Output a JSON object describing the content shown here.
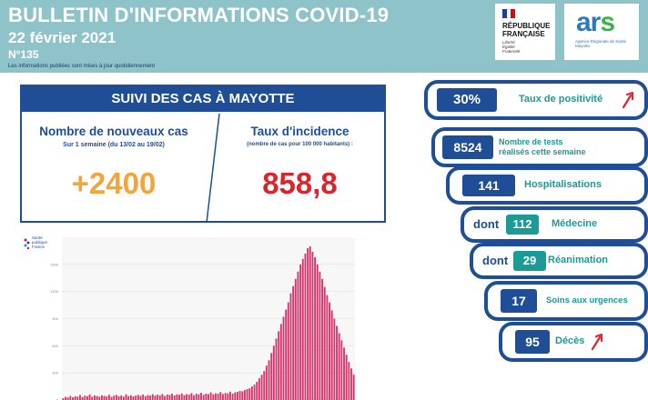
{
  "header": {
    "title": "BULLETIN D'INFORMATIONS COVID-19",
    "date": "22 février 2021",
    "number": "N°135",
    "note": "Les informations publiées sont mises à jour quotidiennement"
  },
  "logos": {
    "republique": "RÉPUBLIQUE\nFRANÇAISE",
    "motto": "Liberté\nÉgalité\nFraternité",
    "ars_word": "ar",
    "ars_s": "s",
    "ars_sub": "Agence Régionale de Santé\nMayotte",
    "spf": "Santé\npublique\nFrance"
  },
  "suivi": {
    "heading": "SUIVI DES CAS À MAYOTTE",
    "cases_label": "Nombre de nouveaux cas",
    "cases_period": "Sur 1 semaine (du 13/02 au 19/02)",
    "cases_value": "+2400",
    "incidence_label": "Taux d'incidence",
    "incidence_note": "(nombre de cas pour 100 000 habitants) :",
    "incidence_value": "858,8"
  },
  "stats": [
    {
      "value": "30%",
      "label": "Taux de positivité",
      "trend": "up"
    },
    {
      "value": "8524",
      "label": "Nombre de tests réalisés cette semaine"
    },
    {
      "value": "141",
      "label": "Hospitalisations"
    },
    {
      "prefix": "dont",
      "value": "112",
      "label": "Médecine"
    },
    {
      "prefix": "dont",
      "value": "29",
      "label": "Réanimation"
    },
    {
      "value": "17",
      "label": "Soins aux urgences"
    },
    {
      "value": "95",
      "label": "Décès",
      "trend": "up"
    }
  ],
  "colors": {
    "header_bg": "#8ec3c9",
    "navy": "#1f4d96",
    "teal": "#1b9a96",
    "orange": "#f3a53b",
    "red": "#d9262e",
    "bar": "#d8336b"
  },
  "chart_data": {
    "type": "bar",
    "title": "",
    "xlabel": "",
    "ylabel": "",
    "ylim": [
      0,
      1800
    ],
    "yticks": [
      0,
      300,
      600,
      900,
      1200,
      1500
    ],
    "series": [
      {
        "values": [
          20,
          35,
          28,
          45,
          30,
          40,
          38,
          55,
          32,
          48,
          42,
          60,
          36,
          50,
          44,
          38,
          52,
          46,
          40,
          58,
          34,
          48,
          56,
          42,
          50,
          38,
          62,
          44,
          52,
          40,
          48,
          56,
          46,
          60,
          42,
          54,
          50,
          64,
          48,
          58,
          52,
          66,
          44,
          60,
          56,
          70,
          50,
          62,
          58,
          72,
          54,
          64,
          60,
          76,
          52,
          68,
          62,
          80,
          58,
          70,
          66,
          84,
          62,
          74,
          70,
          88,
          66,
          78,
          74,
          92,
          70,
          84,
          90,
          100,
          96,
          110,
          120,
          130,
          150,
          170,
          200,
          240,
          280,
          320,
          380,
          440,
          520,
          600,
          680,
          760,
          840,
          920,
          1000,
          1080,
          1180,
          1260,
          1340,
          1420,
          1500,
          1560,
          1620,
          1680,
          1700,
          1640,
          1580,
          1500,
          1420,
          1340,
          1250,
          1160,
          1080,
          990,
          900,
          820,
          740,
          660,
          580,
          500,
          420,
          350,
          280
        ]
      }
    ]
  }
}
